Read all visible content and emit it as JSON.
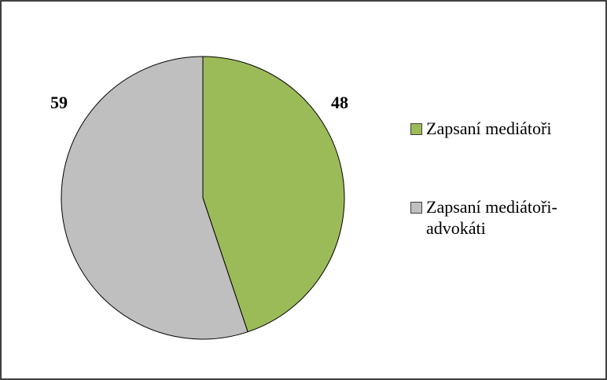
{
  "chart_data": {
    "type": "pie",
    "categories": [
      "Zapsaní mediátoři",
      "Zapsaní mediátoři-advokáti"
    ],
    "values": [
      48,
      59
    ],
    "colors": [
      "#9bbb59",
      "#bfbfbf"
    ]
  }
}
